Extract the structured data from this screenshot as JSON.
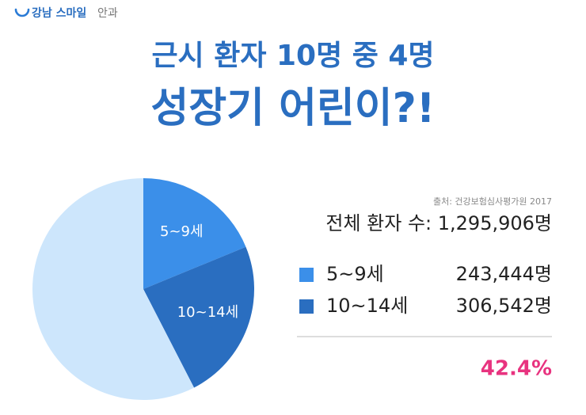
{
  "header": {
    "brand": "강남 스마일",
    "brand_suffix": "안과"
  },
  "title_lines": [
    "근시 환자 10명 중 4명",
    "성장기 어린이?!"
  ],
  "source": "출처: 건강보험심사평가원 2017",
  "total": "전체 환자 수: 1,295,906명",
  "result": "42.4%",
  "chart_data": {
    "type": "pie",
    "categories": [
      "5~9세",
      "10~14세",
      null
    ],
    "values": [
      243444,
      306542,
      745920
    ],
    "value_labels": [
      "243,444명",
      "306,542명",
      null
    ],
    "colors": [
      "#3b8fe9",
      "#2a6ec0",
      "#cde6fc"
    ]
  }
}
